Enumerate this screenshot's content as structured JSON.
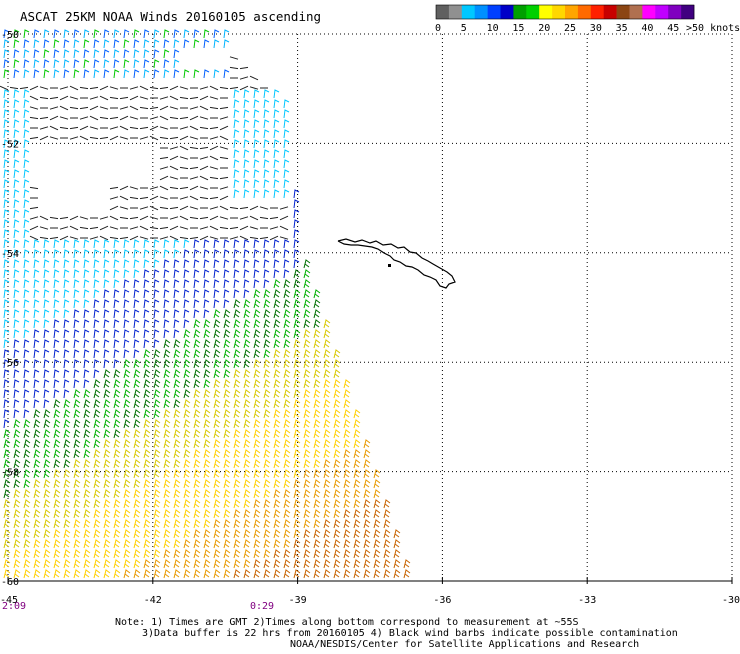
{
  "title": "ASCAT 25KM NOAA Winds 20160105 ascending",
  "legend": {
    "unit_label": ">50 knots",
    "bins": [
      {
        "color": "#606060"
      },
      {
        "color": "#909090"
      },
      {
        "color": "#00c8ff"
      },
      {
        "color": "#0090ff"
      },
      {
        "color": "#0040ff"
      },
      {
        "color": "#0000c8"
      },
      {
        "color": "#00a000"
      },
      {
        "color": "#00d000"
      },
      {
        "color": "#ffff00"
      },
      {
        "color": "#ffd700"
      },
      {
        "color": "#ffa500"
      },
      {
        "color": "#ff6a00"
      },
      {
        "color": "#ff2000"
      },
      {
        "color": "#c80000"
      },
      {
        "color": "#8b4513"
      },
      {
        "color": "#b07050"
      },
      {
        "color": "#ff00ff"
      },
      {
        "color": "#c000ff"
      },
      {
        "color": "#8000c0"
      },
      {
        "color": "#400080"
      }
    ],
    "tick_labels": [
      "0",
      "5",
      "10",
      "15",
      "20",
      "25",
      "30",
      "35",
      "40",
      "45"
    ]
  },
  "map": {
    "lat_labels": [
      "-50",
      "-52",
      "-54",
      "-56",
      "-58",
      "-60"
    ],
    "lon_labels": [
      "-45",
      "-42",
      "-39",
      "-36",
      "-33",
      "-30"
    ],
    "lat_range": [
      -60,
      -50
    ],
    "lon_range": [
      -45,
      -30
    ],
    "time_labels": [
      {
        "text": "2:09",
        "color": "#800080"
      },
      {
        "text": "0:29",
        "color": "#800080"
      }
    ],
    "island_name": ""
  },
  "notes": {
    "line1": "Note: 1) Times are GMT 2)Times along bottom correspond to measurement at ~55S",
    "line2": "3)Data buffer is 22 hrs from 20160105 4) Black wind barbs indicate possible contamination",
    "line3": "NOAA/NESDIS/Center for Satellite Applications and Research"
  }
}
